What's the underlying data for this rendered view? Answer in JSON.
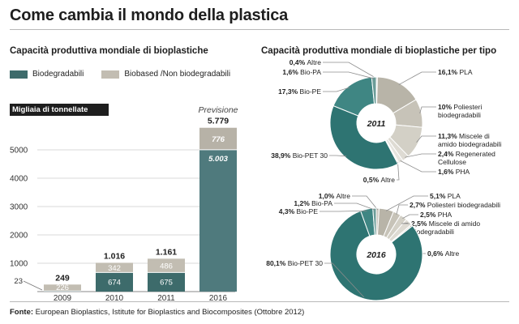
{
  "title": "Come cambia il mondo della plastica",
  "colors": {
    "bio": "#3d6b6b",
    "nonbio": "#c2bdb2",
    "bar2016_bio": "#4f7a7d",
    "bar2016_nonbio": "#b7b2a7",
    "donut_inner": "#ffffff"
  },
  "footer": {
    "label": "Fonte:",
    "text": " European Bioplastics, Istitute for Bioplastics and Biocomposites (Ottobre 2012)"
  },
  "chart_data": [
    {
      "type": "bar",
      "title": "Capacità produttiva mondiale di bioplastiche",
      "unit_label": "Migliaia di tonnellate",
      "categories": [
        "2009",
        "2010",
        "2011",
        "2016"
      ],
      "series": [
        {
          "name": "Biodegradabili",
          "values": [
            23,
            674,
            675,
            5003
          ]
        },
        {
          "name": "Biobased /Non biodegradabili",
          "values": [
            226,
            342,
            486,
            776
          ]
        }
      ],
      "totals": [
        249,
        1016,
        1161,
        5779
      ],
      "segment_labels": {
        "bio": [
          "23",
          "674",
          "675",
          "5.003"
        ],
        "nonbio": [
          "226",
          "342",
          "486",
          "776"
        ],
        "totals": [
          "249",
          "1.016",
          "1.161",
          "5.779"
        ]
      },
      "annotation": "Previsione",
      "yticks": [
        1000,
        2000,
        3000,
        4000,
        5000
      ],
      "ytick_labels": [
        "1000",
        "2000",
        "3000",
        "4000",
        "5000"
      ],
      "ylim": [
        0,
        6000
      ],
      "grid": true
    },
    {
      "type": "pie",
      "title": "Capacità produttiva mondiale di bioplastiche per tipo",
      "center_label": "2011",
      "slices": [
        {
          "value": 0.4,
          "label": "0,4% Altre",
          "color": "#c9c6bd",
          "side": "left"
        },
        {
          "value": 16.1,
          "label": "16,1% PLA",
          "color": "#b8b4a8",
          "side": "right"
        },
        {
          "value": 10,
          "label": "10% Poliesteri biodegradabili",
          "color": "#c7c3b8",
          "side": "right"
        },
        {
          "value": 11.3,
          "label": "11,3% Miscele di amido biodegradabili",
          "color": "#d3d0c6",
          "side": "right"
        },
        {
          "value": 2.4,
          "label": "2,4% Regenerated Cellulose",
          "color": "#dedbd3",
          "side": "right"
        },
        {
          "value": 1.6,
          "label": "1,6% PHA",
          "color": "#e6e4de",
          "side": "right"
        },
        {
          "value": 0.5,
          "label": "0,5% Altre",
          "color": "#ecebe6",
          "side": "right"
        },
        {
          "value": 38.9,
          "label": "38,9% Bio-PET 30",
          "color": "#2e7472",
          "side": "left"
        },
        {
          "value": 17.3,
          "label": "17,3% Bio-PE",
          "color": "#3f8683",
          "side": "left"
        },
        {
          "value": 1.6,
          "label": "1,6% Bio-PA",
          "color": "#6b9c98",
          "side": "left"
        }
      ]
    },
    {
      "type": "pie",
      "title": "",
      "center_label": "2016",
      "slices": [
        {
          "value": 1.0,
          "label": "1,0% Altre",
          "color": "#c9c6bd",
          "side": "left"
        },
        {
          "value": 5.1,
          "label": "5,1% PLA",
          "color": "#b8b4a8",
          "side": "right"
        },
        {
          "value": 2.7,
          "label": "2,7% Poliesteri biodegradabili",
          "color": "#c7c3b8",
          "side": "right"
        },
        {
          "value": 2.5,
          "label": "2,5% PHA",
          "color": "#d3d0c6",
          "side": "right"
        },
        {
          "value": 2.5,
          "label": "2,5% Miscele di amido biodegradabili",
          "color": "#dedbd3",
          "side": "right"
        },
        {
          "value": 0.6,
          "label": "0,6% Altre",
          "color": "#e6e4de",
          "side": "right"
        },
        {
          "value": 80.1,
          "label": "80,1% Bio-PET 30",
          "color": "#2e7472",
          "side": "left"
        },
        {
          "value": 4.3,
          "label": "4,3% Bio-PE",
          "color": "#3f8683",
          "side": "left"
        },
        {
          "value": 1.2,
          "label": "1,2% Bio-PA",
          "color": "#6b9c98",
          "side": "left"
        }
      ]
    }
  ]
}
